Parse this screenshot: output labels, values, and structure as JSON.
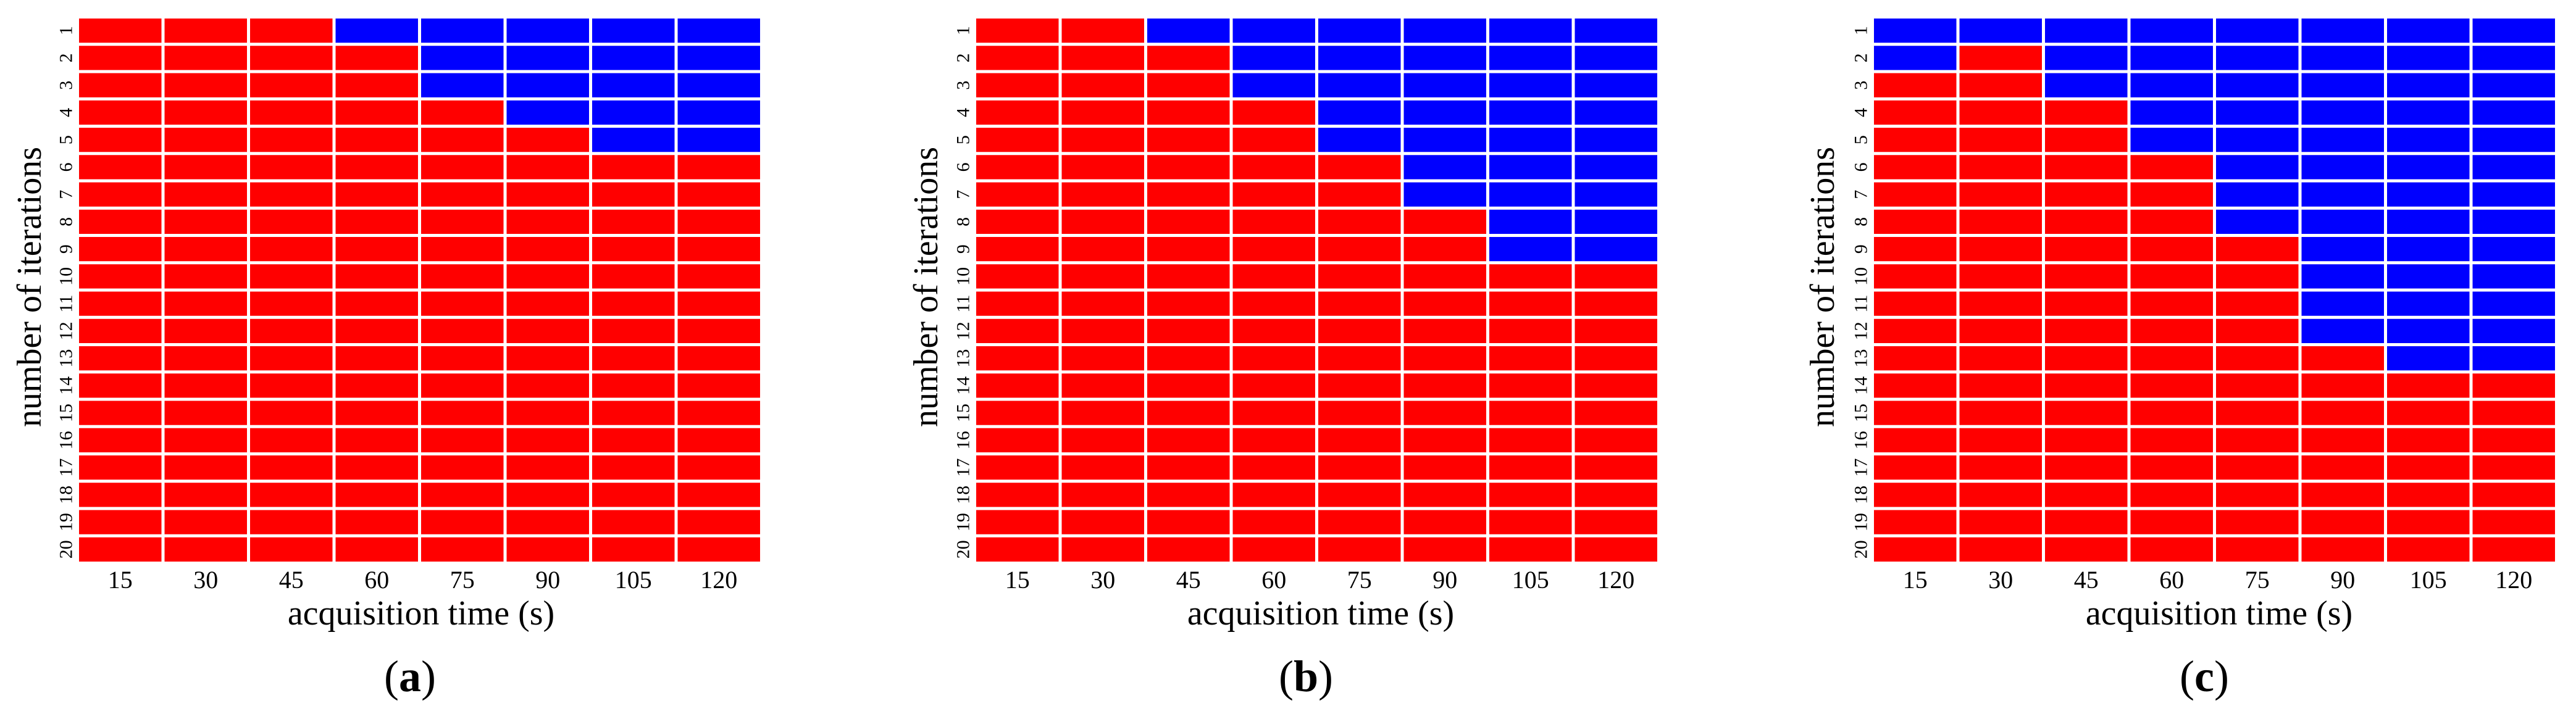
{
  "chart_data": [
    {
      "type": "heatmap",
      "panel": "a",
      "xlabel": "acquisition time (s)",
      "ylabel": "number of iterations",
      "x": [
        "15",
        "30",
        "45",
        "60",
        "75",
        "90",
        "105",
        "120"
      ],
      "y": [
        "1",
        "2",
        "3",
        "4",
        "5",
        "6",
        "7",
        "8",
        "9",
        "10",
        "11",
        "12",
        "13",
        "14",
        "15",
        "16",
        "17",
        "18",
        "19",
        "20"
      ],
      "colors": {
        "red": "#ff0000",
        "blue": "#0000ff"
      },
      "blue_rows_per_column": [
        0,
        0,
        0,
        1,
        3,
        4,
        5,
        5
      ]
    },
    {
      "type": "heatmap",
      "panel": "b",
      "xlabel": "acquisition time (s)",
      "ylabel": "number of iterations",
      "x": [
        "15",
        "30",
        "45",
        "60",
        "75",
        "90",
        "105",
        "120"
      ],
      "y": [
        "1",
        "2",
        "3",
        "4",
        "5",
        "6",
        "7",
        "8",
        "9",
        "10",
        "11",
        "12",
        "13",
        "14",
        "15",
        "16",
        "17",
        "18",
        "19",
        "20"
      ],
      "colors": {
        "red": "#ff0000",
        "blue": "#0000ff"
      },
      "blue_rows_per_column": [
        0,
        0,
        1,
        3,
        5,
        7,
        9,
        9
      ]
    },
    {
      "type": "heatmap",
      "panel": "c",
      "xlabel": "acquisition time (s)",
      "ylabel": "number of iterations",
      "x": [
        "15",
        "30",
        "45",
        "60",
        "75",
        "90",
        "105",
        "120"
      ],
      "y": [
        "1",
        "2",
        "3",
        "4",
        "5",
        "6",
        "7",
        "8",
        "9",
        "10",
        "11",
        "12",
        "13",
        "14",
        "15",
        "16",
        "17",
        "18",
        "19",
        "20"
      ],
      "colors": {
        "red": "#ff0000",
        "blue": "#0000ff"
      },
      "blue_rows_per_column": [
        2,
        1,
        3,
        5,
        8,
        12,
        13,
        13
      ]
    }
  ],
  "panel_labels": [
    {
      "open": "(",
      "letter": "a",
      "close": ")"
    },
    {
      "open": "(",
      "letter": "b",
      "close": ")"
    },
    {
      "open": "(",
      "letter": "c",
      "close": ")"
    }
  ]
}
